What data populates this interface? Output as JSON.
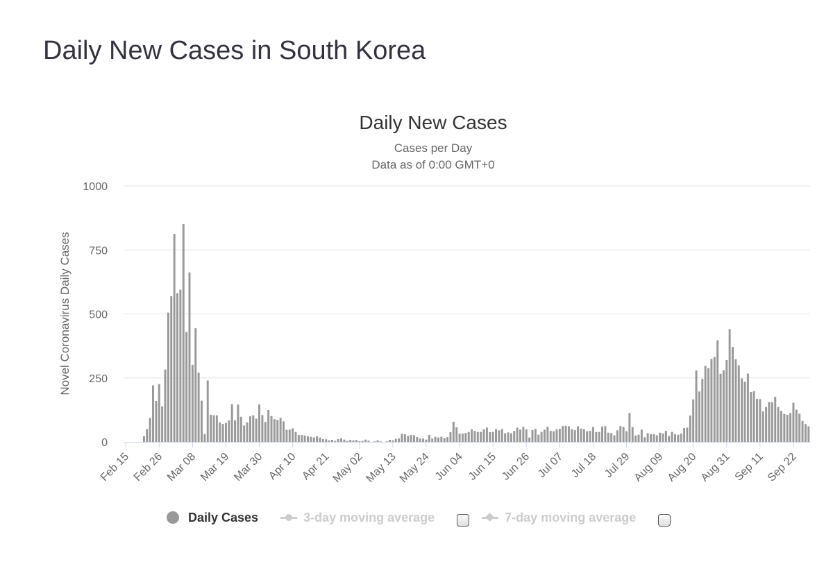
{
  "page": {
    "title": "Daily New Cases in South Korea"
  },
  "chart_data": {
    "type": "bar",
    "title": "Daily New Cases",
    "subtitle": "Cases per Day",
    "subtitle2": "Data as of 0:00 GMT+0",
    "ylabel": "Novel Coronavirus Daily Cases",
    "xlabel": "",
    "ylim": [
      0,
      1000
    ],
    "yticks": [
      0,
      250,
      500,
      750,
      1000
    ],
    "grid": true,
    "legend_position": "bottom",
    "bar_color": "#999999",
    "start_date": "Feb 15",
    "x_tick_labels": [
      "Feb 15",
      "Feb 26",
      "Mar 08",
      "Mar 19",
      "Mar 30",
      "Apr 10",
      "Apr 21",
      "May 02",
      "May 13",
      "May 24",
      "Jun 04",
      "Jun 15",
      "Jun 26",
      "Jul 07",
      "Jul 18",
      "Jul 29",
      "Aug 09",
      "Aug 20",
      "Aug 31",
      "Sep 11",
      "Sep 22"
    ],
    "series": [
      {
        "name": "Daily Cases",
        "values": [
          0,
          0,
          0,
          0,
          0,
          0,
          22,
          50,
          94,
          221,
          160,
          226,
          139,
          283,
          505,
          569,
          813,
          581,
          595,
          851,
          429,
          662,
          301,
          444,
          270,
          161,
          31,
          240,
          106,
          104,
          104,
          76,
          70,
          74,
          84,
          147,
          84,
          146,
          98,
          64,
          76,
          100,
          104,
          91,
          146,
          105,
          78,
          125,
          101,
          89,
          86,
          94,
          80,
          47,
          48,
          53,
          39,
          27,
          27,
          25,
          22,
          20,
          18,
          22,
          17,
          11,
          10,
          6,
          8,
          4,
          11,
          14,
          9,
          4,
          8,
          6,
          8,
          3,
          4,
          9,
          5,
          0,
          2,
          6,
          2,
          0,
          2,
          8,
          6,
          12,
          13,
          32,
          30,
          23,
          27,
          26,
          19,
          13,
          13,
          9,
          27,
          13,
          20,
          17,
          20,
          15,
          19,
          38,
          79,
          57,
          33,
          33,
          35,
          39,
          49,
          43,
          39,
          39,
          49,
          56,
          38,
          39,
          50,
          45,
          50,
          34,
          37,
          34,
          43,
          56,
          48,
          59,
          49,
          17,
          46,
          51,
          28,
          39,
          48,
          59,
          43,
          42,
          49,
          51,
          62,
          63,
          61,
          50,
          46,
          61,
          52,
          50,
          42,
          43,
          58,
          39,
          39,
          60,
          62,
          36,
          34,
          26,
          45,
          62,
          59,
          42,
          113,
          58,
          25,
          28,
          48,
          18,
          34,
          30,
          30,
          26,
          36,
          33,
          43,
          23,
          39,
          30,
          28,
          33,
          54,
          56,
          103,
          166,
          279,
          197,
          246,
          297,
          288,
          324,
          332,
          397,
          266,
          280,
          320,
          441,
          371,
          323,
          299,
          248,
          235,
          267,
          195,
          198,
          168,
          167,
          119,
          136,
          156,
          155,
          176,
          136,
          121,
          109,
          106,
          113,
          153,
          126,
          110,
          82,
          70,
          61
        ]
      },
      {
        "name": "3-day moving average",
        "values": [],
        "enabled": false
      },
      {
        "name": "7-day moving average",
        "values": [],
        "enabled": false
      }
    ]
  },
  "legend": {
    "daily_cases": "Daily Cases",
    "ma3": "3-day moving average",
    "ma7": "7-day moving average"
  }
}
